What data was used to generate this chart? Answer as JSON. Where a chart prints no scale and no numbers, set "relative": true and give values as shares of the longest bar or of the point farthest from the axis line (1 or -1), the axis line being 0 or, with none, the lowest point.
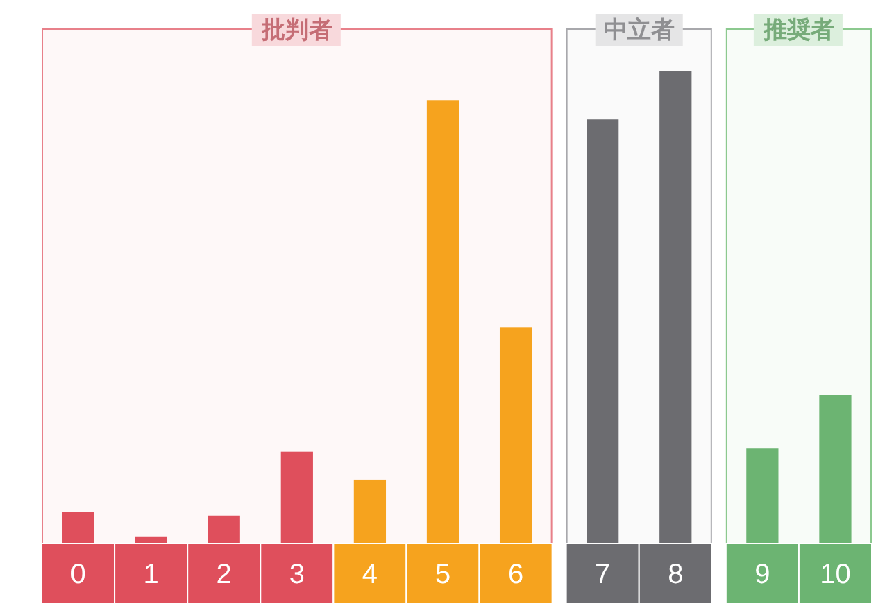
{
  "chart_data": {
    "type": "bar",
    "relative": true,
    "categories": [
      "0",
      "1",
      "2",
      "3",
      "4",
      "5",
      "6",
      "7",
      "8",
      "9",
      "10"
    ],
    "values": [
      0.067,
      0.015,
      0.059,
      0.194,
      0.135,
      0.938,
      0.457,
      0.897,
      1,
      0.202,
      0.314
    ],
    "colors": [
      "#df4f5c",
      "#df4f5c",
      "#df4f5c",
      "#df4f5c",
      "#f6a31e",
      "#f6a31e",
      "#f6a31e",
      "#6c6c70",
      "#6c6c70",
      "#6cb472",
      "#6cb472"
    ],
    "bands": [
      {
        "axis": "x",
        "from": "0",
        "to": "6",
        "label": "批判者",
        "color": "#e8808a"
      },
      {
        "axis": "x",
        "from": "7",
        "to": "8",
        "label": "中立者",
        "color": "#a8a8ac"
      },
      {
        "axis": "x",
        "from": "9",
        "to": "10",
        "label": "推奨者",
        "color": "#8cc98f"
      }
    ]
  }
}
